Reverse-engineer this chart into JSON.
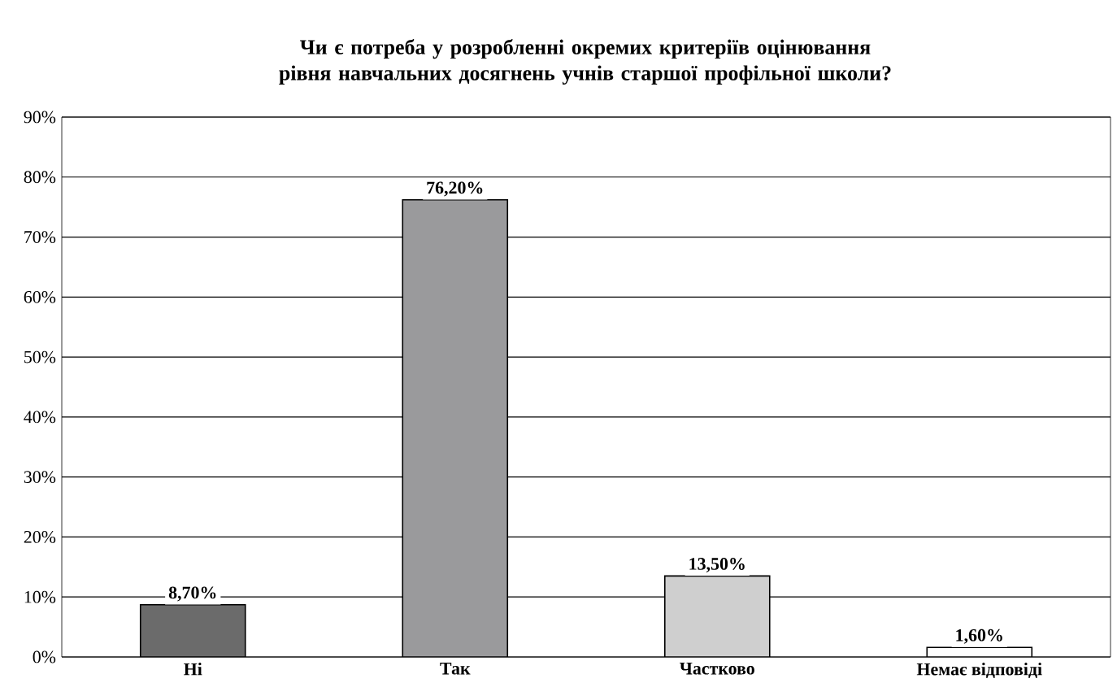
{
  "chart_data": {
    "type": "bar",
    "title": "Чи є потреба у розробленні окремих критеріїв оцінювання рівня навчальних досягнень учнів старшої профільної школи?",
    "categories": [
      "Ні",
      "Так",
      "Частково",
      "Немає відповіді"
    ],
    "values": [
      8.7,
      76.2,
      13.5,
      1.6
    ],
    "value_labels": [
      "8,70%",
      "76,20%",
      "13,50%",
      "1,60%"
    ],
    "colors": [
      "#6b6b6b",
      "#9a9a9c",
      "#cfcfcf",
      "#ffffff"
    ],
    "ylim": [
      0,
      90
    ],
    "yticks": [
      {
        "value": 0,
        "label": "0%"
      },
      {
        "value": 10,
        "label": "10%"
      },
      {
        "value": 20,
        "label": "20%"
      },
      {
        "value": 30,
        "label": "30%"
      },
      {
        "value": 40,
        "label": "40%"
      },
      {
        "value": 50,
        "label": "50%"
      },
      {
        "value": 60,
        "label": "60%"
      },
      {
        "value": 70,
        "label": "70%"
      },
      {
        "value": 80,
        "label": "80%"
      },
      {
        "value": 90,
        "label": "90%"
      }
    ],
    "grid": "y"
  }
}
